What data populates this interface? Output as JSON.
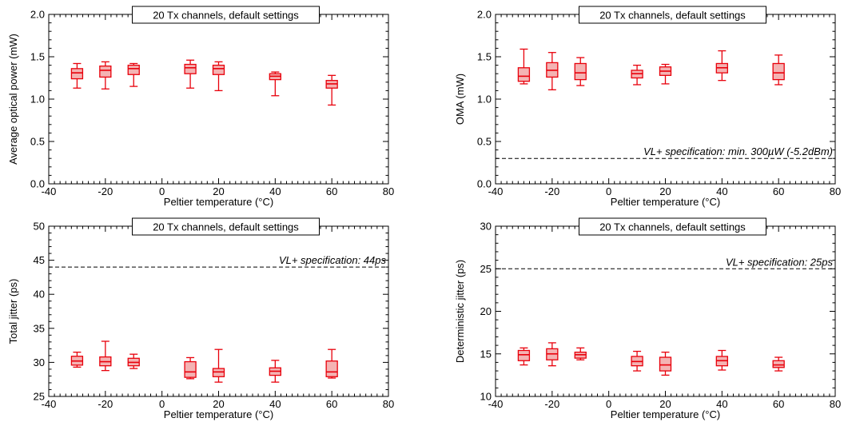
{
  "colors": {
    "box": "#e8000b",
    "box_fill": "#f4b3b3",
    "spec_line": "#000000",
    "axes": "#000000"
  },
  "chart_data": [
    {
      "type": "boxplot",
      "annotation": "20 Tx channels, default settings",
      "xlabel": "Peltier temperature (°C)",
      "ylabel": "Average optical power (mW)",
      "xlim": [
        -40,
        80
      ],
      "ylim": [
        0,
        2.0
      ],
      "xticks": [
        -40,
        -20,
        0,
        20,
        40,
        60,
        80
      ],
      "yticks": [
        0.0,
        0.5,
        1.0,
        1.5,
        2.0
      ],
      "ytick_labels": [
        "0.0",
        "0.5",
        "1.0",
        "1.5",
        "2.0"
      ],
      "grid": false,
      "boxes": [
        {
          "x": -30,
          "min": 1.13,
          "q1": 1.24,
          "median": 1.31,
          "q3": 1.36,
          "max": 1.42
        },
        {
          "x": -20,
          "min": 1.12,
          "q1": 1.26,
          "median": 1.34,
          "q3": 1.39,
          "max": 1.44
        },
        {
          "x": -10,
          "min": 1.15,
          "q1": 1.29,
          "median": 1.36,
          "q3": 1.4,
          "max": 1.42
        },
        {
          "x": 10,
          "min": 1.13,
          "q1": 1.3,
          "median": 1.37,
          "q3": 1.41,
          "max": 1.46
        },
        {
          "x": 20,
          "min": 1.1,
          "q1": 1.29,
          "median": 1.36,
          "q3": 1.4,
          "max": 1.44
        },
        {
          "x": 40,
          "min": 1.04,
          "q1": 1.23,
          "median": 1.27,
          "q3": 1.3,
          "max": 1.32
        },
        {
          "x": 60,
          "min": 0.93,
          "q1": 1.13,
          "median": 1.18,
          "q3": 1.22,
          "max": 1.28
        }
      ],
      "spec": null
    },
    {
      "type": "boxplot",
      "annotation": "20 Tx channels, default settings",
      "xlabel": "Peltier temperature (°C)",
      "ylabel": "OMA (mW)",
      "xlim": [
        -40,
        80
      ],
      "ylim": [
        0,
        2.0
      ],
      "xticks": [
        -40,
        -20,
        0,
        20,
        40,
        60,
        80
      ],
      "yticks": [
        0.0,
        0.5,
        1.0,
        1.5,
        2.0
      ],
      "ytick_labels": [
        "0.0",
        "0.5",
        "1.0",
        "1.5",
        "2.0"
      ],
      "grid": false,
      "boxes": [
        {
          "x": -30,
          "min": 1.18,
          "q1": 1.21,
          "median": 1.27,
          "q3": 1.37,
          "max": 1.59
        },
        {
          "x": -20,
          "min": 1.11,
          "q1": 1.26,
          "median": 1.34,
          "q3": 1.43,
          "max": 1.55
        },
        {
          "x": -10,
          "min": 1.16,
          "q1": 1.23,
          "median": 1.31,
          "q3": 1.42,
          "max": 1.49
        },
        {
          "x": 10,
          "min": 1.17,
          "q1": 1.25,
          "median": 1.3,
          "q3": 1.34,
          "max": 1.4
        },
        {
          "x": 20,
          "min": 1.18,
          "q1": 1.28,
          "median": 1.33,
          "q3": 1.38,
          "max": 1.41
        },
        {
          "x": 40,
          "min": 1.22,
          "q1": 1.31,
          "median": 1.37,
          "q3": 1.42,
          "max": 1.57
        },
        {
          "x": 60,
          "min": 1.17,
          "q1": 1.23,
          "median": 1.31,
          "q3": 1.42,
          "max": 1.52
        }
      ],
      "spec": {
        "y": 0.3,
        "label": "VL+ specification: min. 300µW (-5.2dBm)"
      }
    },
    {
      "type": "boxplot",
      "annotation": "20 Tx channels, default settings",
      "xlabel": "Peltier temperature (°C)",
      "ylabel": "Total jitter (ps)",
      "xlim": [
        -40,
        80
      ],
      "ylim": [
        25,
        50
      ],
      "xticks": [
        -40,
        -20,
        0,
        20,
        40,
        60,
        80
      ],
      "yticks": [
        25,
        30,
        35,
        40,
        45,
        50
      ],
      "ytick_labels": [
        "25",
        "30",
        "35",
        "40",
        "45",
        "50"
      ],
      "grid": false,
      "boxes": [
        {
          "x": -30,
          "min": 29.3,
          "q1": 29.6,
          "median": 30.2,
          "q3": 30.9,
          "max": 31.5
        },
        {
          "x": -20,
          "min": 28.8,
          "q1": 29.5,
          "median": 30.1,
          "q3": 30.8,
          "max": 33.1
        },
        {
          "x": -10,
          "min": 29.1,
          "q1": 29.5,
          "median": 30.0,
          "q3": 30.6,
          "max": 31.2
        },
        {
          "x": 10,
          "min": 27.6,
          "q1": 27.8,
          "median": 28.6,
          "q3": 30.1,
          "max": 30.7
        },
        {
          "x": 20,
          "min": 27.1,
          "q1": 27.9,
          "median": 28.6,
          "q3": 29.1,
          "max": 31.9
        },
        {
          "x": 40,
          "min": 27.1,
          "q1": 28.1,
          "median": 28.7,
          "q3": 29.2,
          "max": 30.3
        },
        {
          "x": 60,
          "min": 27.7,
          "q1": 27.9,
          "median": 28.6,
          "q3": 30.2,
          "max": 31.9
        }
      ],
      "spec": {
        "y": 44,
        "label": "VL+ specification: 44ps"
      }
    },
    {
      "type": "boxplot",
      "annotation": "20 Tx channels, default settings",
      "xlabel": "Peltier temperature (°C)",
      "ylabel": "Deterministic jitter (ps)",
      "xlim": [
        -40,
        80
      ],
      "ylim": [
        10,
        30
      ],
      "xticks": [
        -40,
        -20,
        0,
        20,
        40,
        60,
        80
      ],
      "yticks": [
        10,
        15,
        20,
        25,
        30
      ],
      "ytick_labels": [
        "10",
        "15",
        "20",
        "25",
        "30"
      ],
      "grid": false,
      "boxes": [
        {
          "x": -30,
          "min": 13.7,
          "q1": 14.2,
          "median": 14.9,
          "q3": 15.4,
          "max": 15.7
        },
        {
          "x": -20,
          "min": 13.6,
          "q1": 14.3,
          "median": 15.0,
          "q3": 15.6,
          "max": 16.3
        },
        {
          "x": -10,
          "min": 14.3,
          "q1": 14.5,
          "median": 14.9,
          "q3": 15.2,
          "max": 15.7
        },
        {
          "x": 10,
          "min": 13.0,
          "q1": 13.6,
          "median": 14.1,
          "q3": 14.7,
          "max": 15.3
        },
        {
          "x": 20,
          "min": 12.5,
          "q1": 13.0,
          "median": 13.7,
          "q3": 14.6,
          "max": 15.2
        },
        {
          "x": 40,
          "min": 13.1,
          "q1": 13.6,
          "median": 14.2,
          "q3": 14.7,
          "max": 15.4
        },
        {
          "x": 60,
          "min": 13.0,
          "q1": 13.4,
          "median": 13.7,
          "q3": 14.2,
          "max": 14.6
        }
      ],
      "spec": {
        "y": 25,
        "label": "VL+ specification: 25ps"
      }
    }
  ]
}
